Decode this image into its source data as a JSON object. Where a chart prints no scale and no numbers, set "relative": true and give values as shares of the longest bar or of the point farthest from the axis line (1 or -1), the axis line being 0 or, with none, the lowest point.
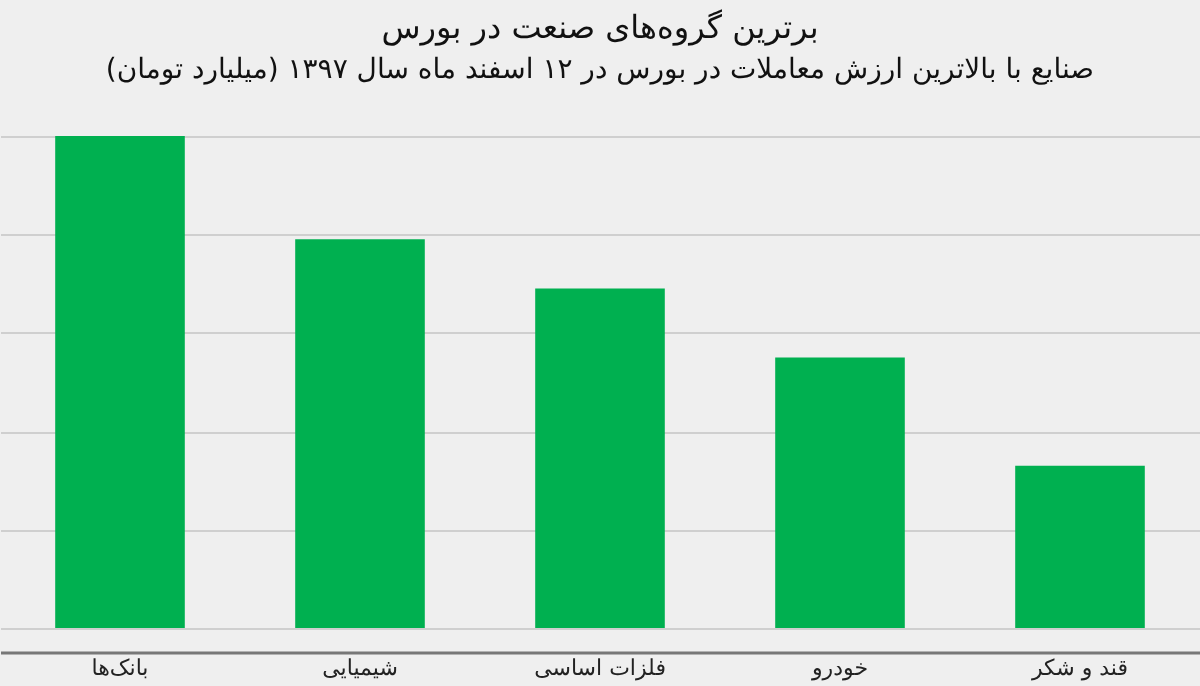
{
  "chart_data": {
    "type": "bar",
    "title": "برترین گروه‌های صنعت در بورس",
    "subtitle": "صنایع با بالاترین ارزش معاملات در بورس در ۱۲ اسفند ماه سال ۱۳۹۷ (میلیارد تومان)",
    "categories": [
      "بانک‌ها",
      "شیمیایی",
      "فلزات اساسی",
      "خودرو",
      "قند و شکر"
    ],
    "values": [
      1,
      0.79,
      0.69,
      0.55,
      0.33
    ],
    "color": "#00b050",
    "relative": true,
    "grid": true
  }
}
